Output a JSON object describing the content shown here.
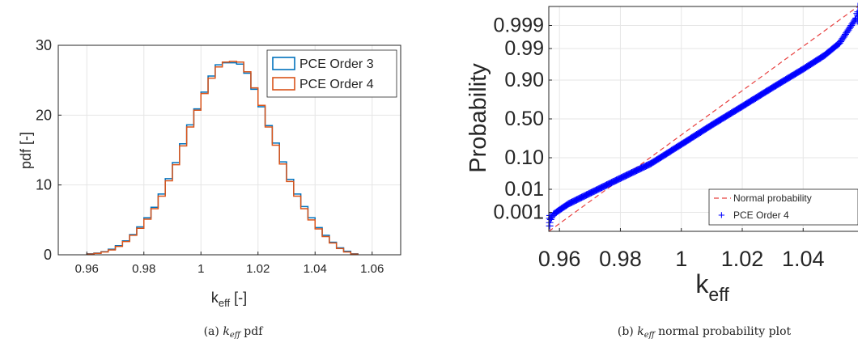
{
  "chart_data": [
    {
      "type": "histogram",
      "xlabel_main": "k",
      "xlabel_sub": "eff",
      "xlabel_unit": "[-]",
      "ylabel": "pdf [-]",
      "xlim": [
        0.95,
        1.07
      ],
      "ylim": [
        0,
        30
      ],
      "xticks": [
        0.96,
        0.98,
        1,
        1.02,
        1.04,
        1.06
      ],
      "xtick_labels": [
        "0.96",
        "0.98",
        "1",
        "1.02",
        "1.04",
        "1.06"
      ],
      "yticks": [
        0,
        10,
        20,
        30
      ],
      "ytick_labels": [
        "0",
        "10",
        "20",
        "30"
      ],
      "grid": true,
      "legend_position": "top-right",
      "bin_edges": [
        0.96,
        0.9625,
        0.965,
        0.9675,
        0.97,
        0.9725,
        0.975,
        0.9775,
        0.98,
        0.9825,
        0.985,
        0.9875,
        0.99,
        0.9925,
        0.995,
        0.9975,
        1.0,
        1.0025,
        1.005,
        1.0075,
        1.01,
        1.0125,
        1.015,
        1.0175,
        1.02,
        1.0225,
        1.025,
        1.0275,
        1.03,
        1.0325,
        1.035,
        1.0375,
        1.04,
        1.0425,
        1.045,
        1.0475,
        1.05,
        1.0525,
        1.055
      ],
      "series": [
        {
          "name": "PCE Order 3",
          "color": "#0072BD",
          "values": [
            0.15,
            0.25,
            0.45,
            0.8,
            1.3,
            2.0,
            2.9,
            4.0,
            5.3,
            6.8,
            8.7,
            10.9,
            13.2,
            15.9,
            18.6,
            20.9,
            23.3,
            25.6,
            27.2,
            27.5,
            27.5,
            27.3,
            26.0,
            23.7,
            21.2,
            18.5,
            16.0,
            13.3,
            10.8,
            8.7,
            6.9,
            5.3,
            3.9,
            2.8,
            1.8,
            1.0,
            0.5,
            0.15
          ]
        },
        {
          "name": "PCE Order 4",
          "color": "#D95319",
          "values": [
            0.1,
            0.2,
            0.4,
            0.7,
            1.2,
            1.9,
            2.8,
            3.8,
            5.1,
            6.6,
            8.4,
            10.6,
            12.9,
            15.6,
            18.3,
            20.7,
            23.1,
            25.3,
            26.9,
            27.6,
            27.7,
            27.6,
            26.2,
            23.9,
            21.4,
            18.3,
            15.7,
            13.0,
            10.5,
            8.4,
            6.6,
            5.0,
            3.7,
            2.6,
            1.7,
            0.9,
            0.4,
            0.1
          ]
        }
      ],
      "caption_prefix": "(a) ",
      "caption_math": "k",
      "caption_math_sub": "eff",
      "caption_suffix": " pdf"
    },
    {
      "type": "scatter",
      "xlabel_main": "k",
      "xlabel_sub": "eff",
      "ylabel": "Probability",
      "xlim": [
        0.9565,
        1.058
      ],
      "xticks": [
        0.96,
        0.98,
        1,
        1.02,
        1.04
      ],
      "xtick_labels": [
        "0.96",
        "0.98",
        "1",
        "1.02",
        "1.04"
      ],
      "yscale": "normal-probability",
      "ylim": [
        0.0001,
        0.9999
      ],
      "yticks": [
        0.001,
        0.01,
        0.1,
        0.5,
        0.9,
        0.99,
        0.999
      ],
      "ytick_labels": [
        "0.001",
        "0.01",
        "0.10",
        "0.50",
        "0.90",
        "0.99",
        "0.999"
      ],
      "grid": true,
      "legend_position": "bottom-right",
      "legend_title": "",
      "series": [
        {
          "name": "Normal probability",
          "color": "#E8403F",
          "style": "dashed-line",
          "x": [
            0.9565,
            1.058
          ],
          "y": [
            0.0001,
            0.9999
          ]
        },
        {
          "name": "PCE Order 4",
          "color": "#0000FF",
          "marker": "+",
          "curve_x": [
            0.9568,
            0.957,
            0.958,
            0.96,
            0.963,
            0.97,
            0.98,
            0.99,
            1.0,
            1.01,
            1.02,
            1.03,
            1.04,
            1.047,
            1.052,
            1.055,
            1.0575,
            1.058
          ],
          "curve_y": [
            0.0002,
            0.0004,
            0.0008,
            0.0013,
            0.0025,
            0.007,
            0.025,
            0.07,
            0.2,
            0.42,
            0.66,
            0.85,
            0.95,
            0.982,
            0.994,
            0.9985,
            0.9996,
            0.9999
          ]
        }
      ],
      "caption_prefix": "(b) ",
      "caption_math": "k",
      "caption_math_sub": "eff",
      "caption_suffix": " normal probability plot"
    }
  ]
}
